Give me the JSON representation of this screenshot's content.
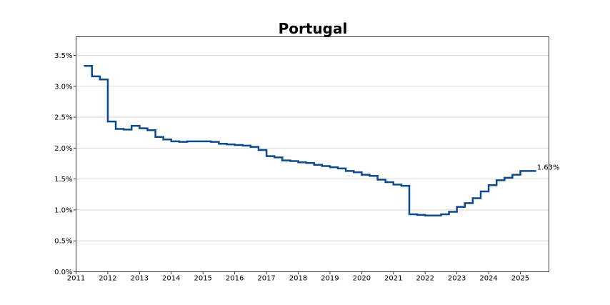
{
  "chart_data": {
    "type": "line",
    "title": "Portugal",
    "xlabel": "",
    "ylabel": "",
    "grid": "horizontal",
    "line_color": "#0b4a8c",
    "xlim": [
      2011.0,
      2025.9
    ],
    "ylim": [
      0.0,
      3.8
    ],
    "x_ticks": [
      2011,
      2012,
      2013,
      2014,
      2015,
      2016,
      2017,
      2018,
      2019,
      2020,
      2021,
      2022,
      2023,
      2024,
      2025
    ],
    "x_tick_labels": [
      "2011",
      "2012",
      "2013",
      "2014",
      "2015",
      "2016",
      "2017",
      "2018",
      "2019",
      "2020",
      "2021",
      "2022",
      "2023",
      "2024",
      "2025"
    ],
    "y_ticks": [
      0.0,
      0.5,
      1.0,
      1.5,
      2.0,
      2.5,
      3.0,
      3.5
    ],
    "y_tick_labels": [
      "0.0%",
      "0.5%",
      "1.0%",
      "1.5%",
      "2.0%",
      "2.5%",
      "3.0%",
      "3.5%"
    ],
    "series": [
      {
        "x": [
          2011.25,
          2011.5,
          2011.75,
          2012.0,
          2012.25,
          2012.5,
          2012.75,
          2013.0,
          2013.25,
          2013.5,
          2013.75,
          2014.0,
          2014.25,
          2014.5,
          2014.75,
          2015.0,
          2015.25,
          2015.5,
          2015.75,
          2016.0,
          2016.25,
          2016.5,
          2016.75,
          2017.0,
          2017.25,
          2017.5,
          2017.75,
          2018.0,
          2018.25,
          2018.5,
          2018.75,
          2019.0,
          2019.25,
          2019.5,
          2019.75,
          2020.0,
          2020.25,
          2020.5,
          2020.75,
          2021.0,
          2021.25,
          2021.5,
          2021.75,
          2022.0,
          2022.25,
          2022.5,
          2022.75,
          2023.0,
          2023.25,
          2023.5,
          2023.75,
          2024.0,
          2024.25,
          2024.5,
          2024.75,
          2025.0,
          2025.25
        ],
        "y": [
          3.33,
          3.16,
          3.11,
          2.43,
          2.31,
          2.3,
          2.36,
          2.32,
          2.29,
          2.18,
          2.14,
          2.11,
          2.1,
          2.11,
          2.11,
          2.11,
          2.1,
          2.07,
          2.06,
          2.05,
          2.04,
          2.02,
          1.97,
          1.87,
          1.85,
          1.8,
          1.79,
          1.77,
          1.76,
          1.73,
          1.71,
          1.69,
          1.67,
          1.63,
          1.61,
          1.57,
          1.55,
          1.49,
          1.45,
          1.41,
          1.39,
          0.93,
          0.92,
          0.91,
          0.91,
          0.93,
          0.97,
          1.05,
          1.11,
          1.19,
          1.3,
          1.4,
          1.48,
          1.52,
          1.57,
          1.63,
          1.63
        ]
      }
    ],
    "annotation": {
      "text": "1.63%",
      "x": 2025.25,
      "y": 1.63
    }
  }
}
